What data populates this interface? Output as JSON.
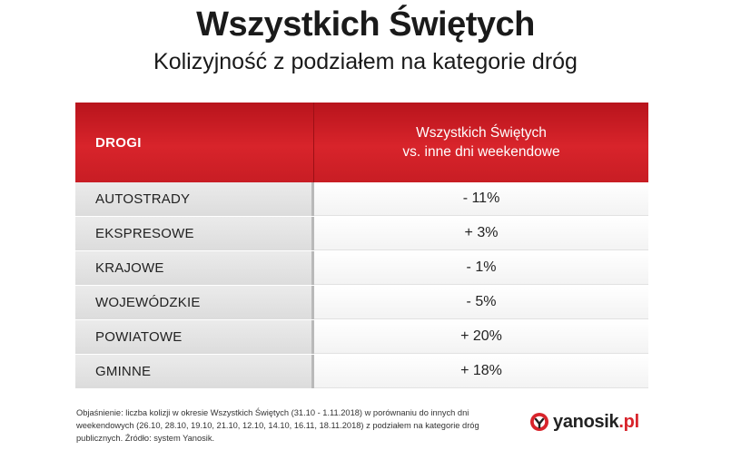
{
  "title": "Wszystkich Świętych",
  "subtitle": "Kolizyjność z podziałem na kategorie dróg",
  "table": {
    "header_left": "DROGI",
    "header_right_line1": "Wszystkich Świętych",
    "header_right_line2": "vs. inne dni weekendowe",
    "rows": [
      {
        "category": "AUTOSTRADY",
        "value": "- 11%"
      },
      {
        "category": "EKSPRESOWE",
        "value": "+ 3%"
      },
      {
        "category": "KRAJOWE",
        "value": "- 1%"
      },
      {
        "category": "WOJEWÓDZKIE",
        "value": "- 5%"
      },
      {
        "category": "POWIATOWE",
        "value": "+ 20%"
      },
      {
        "category": "GMINNE",
        "value": "+ 18%"
      }
    ]
  },
  "note": {
    "line1": "Objaśnienie: liczba kolizji w okresie Wszystkich Świętych (31.10 - 1.11.2018) w porównaniu do innych dni",
    "line2": "weekendowych (26.10, 28.10, 19.10, 21.10, 12.10, 14.10, 16.11, 18.11.2018) z podziałem na kategorie dróg",
    "line3": "publicznych. Źródło: system Yanosik."
  },
  "logo": {
    "name": "yanosik",
    "tld": ".pl",
    "icon": "yanosik-logo-icon"
  },
  "colors": {
    "header_red": "#d8242b",
    "row_gray": "#e3e3e3",
    "text_dark": "#1a1a1a"
  }
}
